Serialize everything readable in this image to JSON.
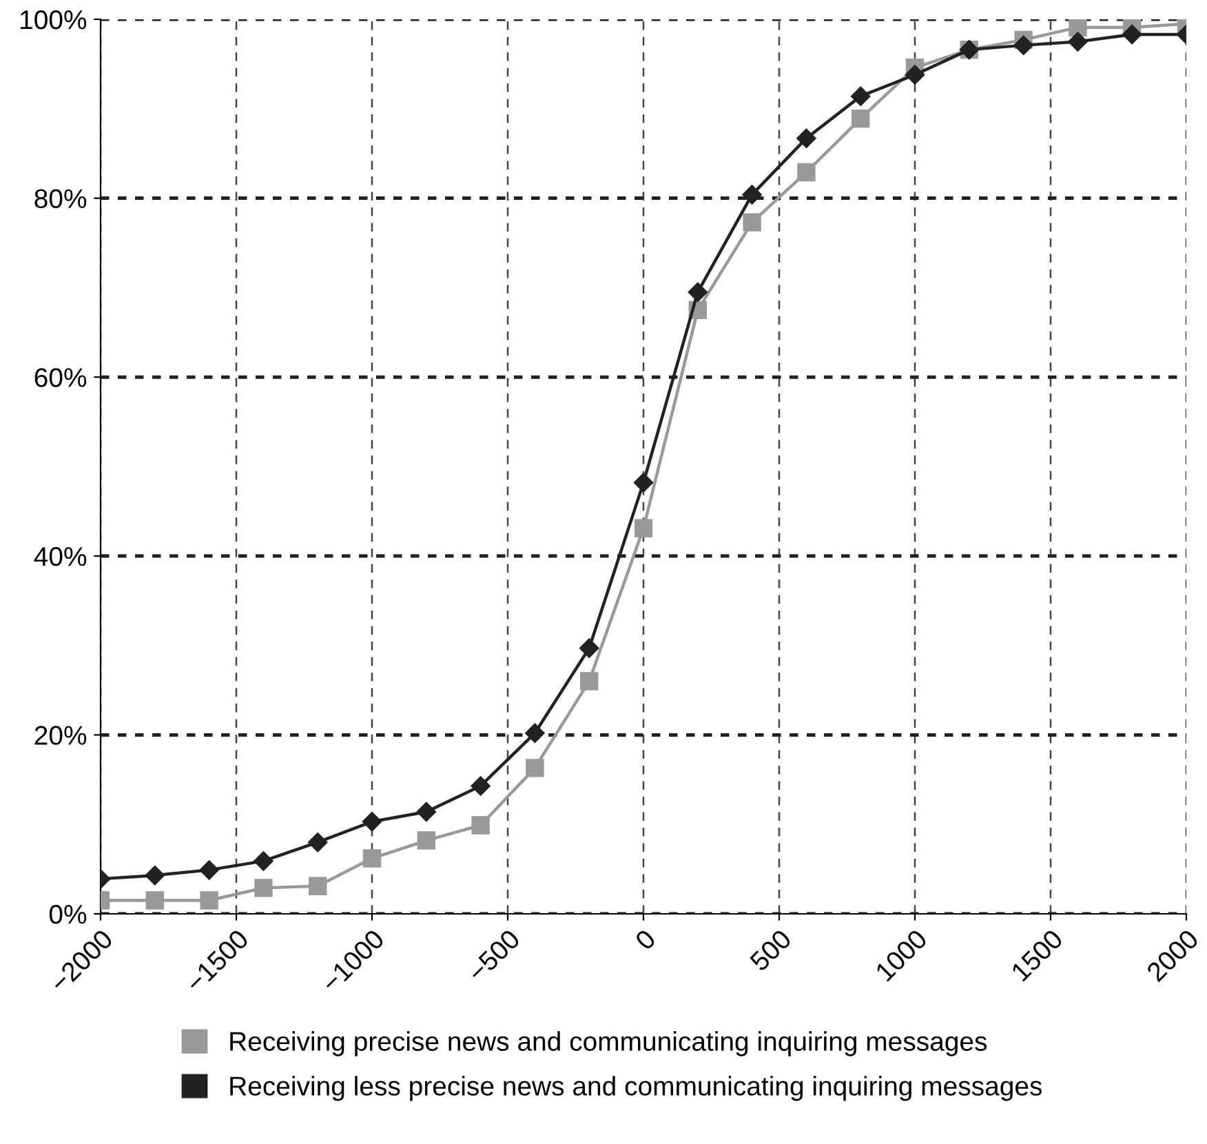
{
  "chart_data": {
    "type": "line",
    "x": [
      -2000,
      -1800,
      -1600,
      -1400,
      -1200,
      -1000,
      -800,
      -600,
      -400,
      -200,
      0,
      200,
      400,
      600,
      800,
      1000,
      1200,
      1400,
      1600,
      1800,
      2000
    ],
    "series": [
      {
        "name": "Receiving precise news and communicating inquiring messages",
        "color": "#999999",
        "marker": "square",
        "values": [
          1.5,
          1.5,
          1.5,
          2.9,
          3.1,
          6.2,
          8.2,
          9.9,
          16.3,
          26,
          43.1,
          67.5,
          77.3,
          82.9,
          88.9,
          94.6,
          96.6,
          97.7,
          99.1,
          99.1,
          99.5
        ]
      },
      {
        "name": "Receiving less precise news and communicating inquiring messages",
        "color": "#222222",
        "marker": "diamond",
        "values": [
          3.9,
          4.3,
          4.9,
          5.9,
          8.0,
          10.3,
          11.4,
          14.3,
          20.2,
          29.7,
          48.2,
          69.5,
          80.4,
          86.7,
          91.4,
          93.8,
          96.6,
          97.1,
          97.5,
          98.3,
          98.3
        ]
      }
    ],
    "xlim": [
      -2000,
      2000
    ],
    "xticks": [
      {
        "value": -2000,
        "label": "−2000"
      },
      {
        "value": -1500,
        "label": "−1500"
      },
      {
        "value": -1000,
        "label": "−1000"
      },
      {
        "value": -500,
        "label": "−500"
      },
      0,
      500,
      1000,
      1500,
      2000
    ],
    "ylim": [
      0,
      100
    ],
    "yticks": [
      {
        "value": 0,
        "label": "0%"
      },
      {
        "value": 20,
        "label": "20%"
      },
      {
        "value": 40,
        "label": "40%"
      },
      {
        "value": 60,
        "label": "60%"
      },
      {
        "value": 80,
        "label": "80%"
      },
      {
        "value": 100,
        "label": "100%"
      }
    ],
    "grid": true,
    "legend": "bottom",
    "line_style": "solid"
  }
}
